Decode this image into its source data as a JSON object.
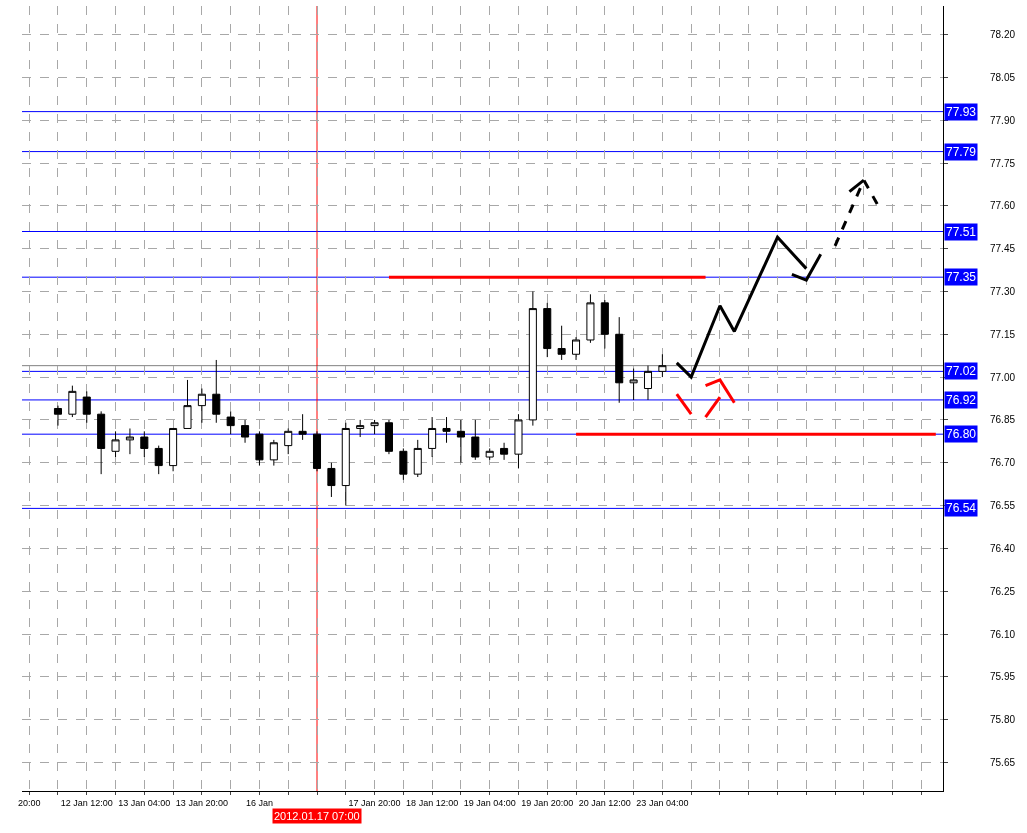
{
  "chart_data": {
    "type": "candlestick",
    "color": "#000000",
    "categories": [
      "20:00",
      null,
      null,
      null,
      "12 Jan 12:00",
      null,
      null,
      null,
      "13 Jan 04:00",
      null,
      null,
      null,
      "13 Jan 20:00",
      null,
      null,
      null,
      "16 Jan",
      null,
      null,
      null,
      "2012.01.17 07:00",
      null,
      null,
      null,
      "17 Jan 20:00",
      null,
      null,
      null,
      "18 Jan 12:00",
      null,
      null,
      null,
      "19 Jan 04:00",
      null,
      null,
      null,
      "19 Jan 20:00",
      null,
      null,
      null,
      "20 Jan 12:00",
      null,
      null,
      null,
      "23 Jan 04:00",
      null,
      null,
      null,
      null,
      null,
      null,
      null,
      null,
      null,
      null,
      null,
      null,
      null,
      null,
      null,
      null,
      null,
      null,
      null
    ],
    "ohlc": [
      null,
      null,
      [
        76.89,
        76.9,
        76.83,
        76.87
      ],
      [
        76.87,
        76.97,
        76.86,
        76.95
      ],
      [
        76.93,
        76.95,
        76.84,
        76.87
      ],
      [
        76.87,
        76.88,
        76.66,
        76.75
      ],
      [
        76.74,
        76.81,
        76.72,
        76.78
      ],
      [
        76.78,
        76.82,
        76.73,
        76.79
      ],
      [
        76.79,
        76.81,
        76.72,
        76.75
      ],
      [
        76.75,
        76.76,
        76.66,
        76.69
      ],
      [
        76.69,
        76.82,
        76.67,
        76.82
      ],
      [
        76.82,
        76.99,
        76.82,
        76.9
      ],
      [
        76.9,
        76.96,
        76.84,
        76.94
      ],
      [
        76.94,
        77.06,
        76.84,
        76.87
      ],
      [
        76.86,
        76.88,
        76.8,
        76.83
      ],
      [
        76.83,
        76.85,
        76.77,
        76.79
      ],
      [
        76.8,
        76.81,
        76.69,
        76.71
      ],
      [
        76.71,
        76.78,
        76.69,
        76.77
      ],
      [
        76.76,
        76.82,
        76.73,
        76.81
      ],
      [
        76.81,
        76.87,
        76.78,
        76.8
      ],
      [
        76.8,
        76.81,
        76.67,
        76.68
      ],
      [
        76.68,
        76.7,
        76.58,
        76.62
      ],
      [
        76.62,
        76.84,
        76.55,
        76.82
      ],
      [
        76.82,
        76.85,
        76.79,
        76.83
      ],
      [
        76.83,
        76.85,
        76.8,
        76.84
      ],
      [
        76.84,
        76.85,
        76.73,
        76.74
      ],
      [
        76.74,
        76.75,
        76.64,
        76.66
      ],
      [
        76.66,
        76.78,
        76.65,
        76.75
      ],
      [
        76.75,
        76.86,
        76.72,
        76.82
      ],
      [
        76.82,
        76.86,
        76.77,
        76.81
      ],
      [
        76.81,
        76.85,
        76.7,
        76.79
      ],
      [
        76.79,
        76.85,
        76.71,
        76.72
      ],
      [
        76.72,
        76.75,
        76.71,
        76.74
      ],
      [
        76.75,
        76.77,
        76.71,
        76.73
      ],
      [
        76.73,
        76.87,
        76.68,
        76.85
      ],
      [
        76.85,
        77.3,
        76.83,
        77.24
      ],
      [
        77.24,
        77.26,
        77.07,
        77.1
      ],
      [
        77.1,
        77.18,
        77.06,
        77.08
      ],
      [
        77.08,
        77.14,
        77.06,
        77.13
      ],
      [
        77.13,
        77.29,
        77.12,
        77.26
      ],
      [
        77.26,
        77.27,
        77.1,
        77.15
      ],
      [
        77.15,
        77.21,
        76.91,
        76.98
      ],
      [
        76.98,
        77.03,
        76.92,
        76.99
      ],
      [
        76.96,
        77.04,
        76.92,
        77.02
      ],
      [
        77.02,
        77.08,
        77.0,
        77.04
      ],
      null,
      null,
      null,
      null,
      null,
      null,
      null,
      null,
      null,
      null,
      null,
      null,
      null,
      null,
      null,
      null,
      null,
      null,
      null
    ],
    "series": [
      {
        "type": "line",
        "color": "#ff0000",
        "line_style": "solid",
        "values": [
          null,
          null,
          null,
          null,
          null,
          null,
          null,
          null,
          null,
          null,
          null,
          null,
          null,
          null,
          null,
          null,
          null,
          null,
          null,
          null,
          null,
          null,
          null,
          null,
          null,
          77.35,
          null,
          null,
          null,
          null,
          null,
          null,
          null,
          null,
          null,
          null,
          null,
          null,
          null,
          null,
          null,
          null,
          null,
          null,
          null,
          null,
          null,
          77.35,
          null,
          null,
          null,
          null,
          null,
          null,
          null,
          null,
          null,
          null,
          null,
          null,
          null,
          null,
          null,
          null
        ]
      },
      {
        "type": "line",
        "color": "#ff0000",
        "line_style": "solid",
        "values": [
          null,
          null,
          null,
          null,
          null,
          null,
          null,
          null,
          null,
          null,
          null,
          null,
          null,
          null,
          null,
          null,
          null,
          null,
          null,
          null,
          null,
          null,
          null,
          null,
          null,
          null,
          null,
          null,
          null,
          null,
          null,
          null,
          null,
          null,
          null,
          null,
          null,
          null,
          76.8,
          null,
          null,
          null,
          null,
          null,
          null,
          null,
          null,
          null,
          null,
          null,
          null,
          null,
          null,
          null,
          null,
          null,
          null,
          null,
          null,
          null,
          null,
          null,
          null,
          76.8
        ]
      },
      {
        "type": "line",
        "color": "#000000",
        "line_style": "solid",
        "values": [
          null,
          null,
          null,
          null,
          null,
          null,
          null,
          null,
          null,
          null,
          null,
          null,
          null,
          null,
          null,
          null,
          null,
          null,
          null,
          null,
          null,
          null,
          null,
          null,
          null,
          null,
          null,
          null,
          null,
          null,
          null,
          null,
          null,
          null,
          null,
          null,
          null,
          null,
          null,
          null,
          null,
          null,
          null,
          null,
          null,
          77.05,
          77.0,
          null,
          77.25,
          77.16,
          null,
          null,
          77.49,
          null,
          77.38,
          null,
          null,
          null,
          null,
          null,
          null,
          null,
          null,
          null
        ]
      },
      {
        "type": "line",
        "color": "#000000",
        "line_style": "solid",
        "values": [
          null,
          null,
          null,
          null,
          null,
          null,
          null,
          null,
          null,
          null,
          null,
          null,
          null,
          null,
          null,
          null,
          null,
          null,
          null,
          null,
          null,
          null,
          null,
          null,
          null,
          null,
          null,
          null,
          null,
          null,
          null,
          null,
          null,
          null,
          null,
          null,
          null,
          null,
          null,
          null,
          null,
          null,
          null,
          null,
          null,
          null,
          null,
          null,
          null,
          null,
          null,
          null,
          null,
          77.36,
          77.34,
          77.43,
          null,
          null,
          null,
          null,
          null,
          null,
          null,
          null
        ]
      },
      {
        "type": "line",
        "color": "#000000",
        "line_style": "dashed",
        "values": [
          null,
          null,
          null,
          null,
          null,
          null,
          null,
          null,
          null,
          null,
          null,
          null,
          null,
          null,
          null,
          null,
          null,
          null,
          null,
          null,
          null,
          null,
          null,
          null,
          null,
          null,
          null,
          null,
          null,
          null,
          null,
          null,
          null,
          null,
          null,
          null,
          null,
          null,
          null,
          null,
          null,
          null,
          null,
          null,
          null,
          null,
          null,
          null,
          null,
          null,
          null,
          null,
          null,
          null,
          null,
          null,
          77.46,
          null,
          77.69,
          77.6,
          null,
          null,
          null,
          null
        ]
      },
      {
        "type": "line",
        "color": "#000000",
        "line_style": "solid",
        "values": [
          null,
          null,
          null,
          null,
          null,
          null,
          null,
          null,
          null,
          null,
          null,
          null,
          null,
          null,
          null,
          null,
          null,
          null,
          null,
          null,
          null,
          null,
          null,
          null,
          null,
          null,
          null,
          null,
          null,
          null,
          null,
          null,
          null,
          null,
          null,
          null,
          null,
          null,
          null,
          null,
          null,
          null,
          null,
          null,
          null,
          null,
          null,
          null,
          null,
          null,
          null,
          null,
          null,
          null,
          null,
          null,
          null,
          77.65,
          77.69,
          null,
          null,
          null,
          null,
          null
        ]
      },
      {
        "type": "line",
        "color": "#ff0000",
        "line_style": "solid",
        "values": [
          null,
          null,
          null,
          null,
          null,
          null,
          null,
          null,
          null,
          null,
          null,
          null,
          null,
          null,
          null,
          null,
          null,
          null,
          null,
          null,
          null,
          null,
          null,
          null,
          null,
          null,
          null,
          null,
          null,
          null,
          null,
          null,
          null,
          null,
          null,
          null,
          null,
          null,
          null,
          null,
          null,
          null,
          null,
          null,
          null,
          76.94,
          76.87,
          null,
          null,
          null,
          null,
          null,
          null,
          null,
          null,
          null,
          null,
          null,
          null,
          null,
          null,
          null,
          null,
          null
        ]
      },
      {
        "type": "line",
        "color": "#ff0000",
        "line_style": "solid",
        "values": [
          null,
          null,
          null,
          null,
          null,
          null,
          null,
          null,
          null,
          null,
          null,
          null,
          null,
          null,
          null,
          null,
          null,
          null,
          null,
          null,
          null,
          null,
          null,
          null,
          null,
          null,
          null,
          null,
          null,
          null,
          null,
          null,
          null,
          null,
          null,
          null,
          null,
          null,
          null,
          null,
          null,
          null,
          null,
          null,
          null,
          null,
          null,
          76.86,
          76.93,
          null,
          null,
          null,
          null,
          null,
          null,
          null,
          null,
          null,
          null,
          null,
          null,
          null,
          null,
          null
        ]
      },
      {
        "type": "line",
        "color": "#ff0000",
        "line_style": "solid",
        "values": [
          null,
          null,
          null,
          null,
          null,
          null,
          null,
          null,
          null,
          null,
          null,
          null,
          null,
          null,
          null,
          null,
          null,
          null,
          null,
          null,
          null,
          null,
          null,
          null,
          null,
          null,
          null,
          null,
          null,
          null,
          null,
          null,
          null,
          null,
          null,
          null,
          null,
          null,
          null,
          null,
          null,
          null,
          null,
          null,
          null,
          null,
          null,
          76.97,
          76.99,
          76.91,
          null,
          null,
          null,
          null,
          null,
          null,
          null,
          null,
          null,
          null,
          null,
          null,
          null,
          null
        ]
      }
    ],
    "ylim": [
      75.55,
      78.3
    ],
    "yticks": [
      {
        "value": 75.65,
        "label": "75.65"
      },
      {
        "value": 75.8,
        "label": "75.80"
      },
      {
        "value": 75.95,
        "label": "75.95"
      },
      {
        "value": 76.1,
        "label": "76.10"
      },
      {
        "value": 76.25,
        "label": "76.25"
      },
      {
        "value": 76.4,
        "label": "76.40"
      },
      {
        "value": 76.55,
        "label": "76.55"
      },
      {
        "value": 76.7,
        "label": "76.70"
      },
      {
        "value": 76.85,
        "label": "76.85"
      },
      {
        "value": 77.0,
        "label": "77.00"
      },
      {
        "value": 77.15,
        "label": "77.15"
      },
      {
        "value": 77.3,
        "label": "77.30"
      },
      {
        "value": 77.45,
        "label": "77.45"
      },
      {
        "value": 77.6,
        "label": "77.60"
      },
      {
        "value": 77.75,
        "label": "77.75"
      },
      {
        "value": 77.9,
        "label": "77.90"
      },
      {
        "value": 78.05,
        "label": "78.05"
      },
      {
        "value": 78.2,
        "label": "78.20"
      }
    ],
    "grid": true,
    "ref_lines": [
      {
        "axis": "y",
        "value": 77.93,
        "label": "77.93",
        "color": "#0000ff"
      },
      {
        "axis": "y",
        "value": 77.79,
        "label": "77.79",
        "color": "#0000ff"
      },
      {
        "axis": "y",
        "value": 77.51,
        "label": "77.51",
        "color": "#0000ff"
      },
      {
        "axis": "y",
        "value": 77.35,
        "label": "77.35",
        "color": "#0000ff"
      },
      {
        "axis": "y",
        "value": 77.04,
        "color": "#808080"
      },
      {
        "axis": "y",
        "value": 77.02,
        "label": "77.02",
        "color": "#0000ff"
      },
      {
        "axis": "y",
        "value": 76.92,
        "label": "76.92",
        "color": "#0000ff"
      },
      {
        "axis": "y",
        "value": 76.8,
        "label": "76.80",
        "color": "#0000ff"
      },
      {
        "axis": "y",
        "value": 76.54,
        "label": "76.54",
        "color": "#0000ff"
      },
      {
        "axis": "x",
        "value": "2012.01.17 07:00",
        "color": "#ff0000"
      }
    ]
  }
}
